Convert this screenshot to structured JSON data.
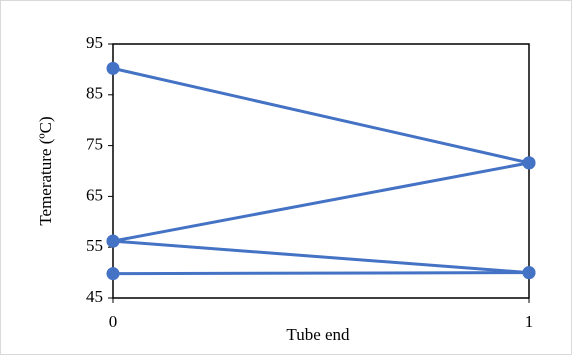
{
  "chart_data": {
    "type": "line",
    "x": [
      0,
      1
    ],
    "series": [
      {
        "color": "#4472c4",
        "values": [
          90.2,
          71.6
        ]
      },
      {
        "color": "#4472c4",
        "values": [
          56.2,
          71.6
        ]
      },
      {
        "color": "#4472c4",
        "values": [
          56.2,
          50.0
        ]
      },
      {
        "color": "#4472c4",
        "values": [
          49.8,
          50.0
        ]
      }
    ],
    "xlim": [
      0,
      1
    ],
    "xticks": [
      0,
      1
    ],
    "ylim": [
      45,
      95
    ],
    "yticks": [
      45,
      55,
      65,
      75,
      85,
      95
    ],
    "xlabel": "Tube end",
    "ylabel": "Temerature (ºC)"
  }
}
